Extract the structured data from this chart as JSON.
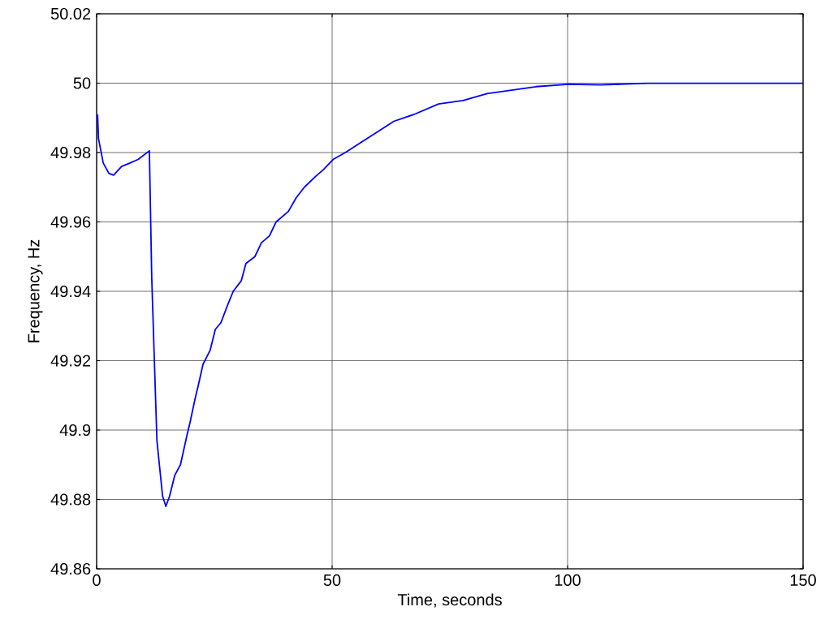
{
  "chart_data": {
    "type": "line",
    "xlabel": "Time, seconds",
    "ylabel": "Frequency, Hz",
    "xlim": [
      0,
      150
    ],
    "ylim": [
      49.86,
      50.02
    ],
    "xticks": [
      0,
      50,
      100,
      150
    ],
    "yticks": [
      49.86,
      49.88,
      49.9,
      49.92,
      49.94,
      49.96,
      49.98,
      50,
      50.02
    ],
    "grid": true,
    "line_style": "solid",
    "series": [
      {
        "color": "#0000ff",
        "x": [
          0.2,
          0.4,
          1.4,
          2.6,
          3.6,
          5.3,
          7.1,
          8.8,
          11.2,
          11.7,
          12.8,
          14.0,
          14.7,
          15.5,
          16.6,
          17.8,
          19.1,
          19.8,
          20.9,
          21.6,
          22.6,
          24.1,
          25.2,
          26.4,
          27.8,
          29.0,
          30.7,
          31.7,
          33.6,
          35.0,
          36.7,
          38.1,
          40.7,
          42.4,
          44.1,
          46.4,
          48.1,
          50.2,
          52.8,
          56.2,
          59.7,
          63.1,
          67.4,
          72.6,
          77.8,
          82.9,
          88.1,
          93.3,
          100.2,
          107,
          117,
          128,
          138,
          150
        ],
        "values": [
          49.991,
          49.984,
          49.977,
          49.974,
          49.9735,
          49.976,
          49.977,
          49.978,
          49.9805,
          49.944,
          49.897,
          49.881,
          49.878,
          49.881,
          49.887,
          49.89,
          49.898,
          49.902,
          49.909,
          49.913,
          49.919,
          49.923,
          49.929,
          49.931,
          49.936,
          49.94,
          49.943,
          49.948,
          49.95,
          49.954,
          49.956,
          49.96,
          49.963,
          49.967,
          49.97,
          49.973,
          49.975,
          49.978,
          49.98,
          49.983,
          49.986,
          49.989,
          49.991,
          49.994,
          49.995,
          49.997,
          49.998,
          49.999,
          49.9997,
          49.9995,
          50.0,
          50.0,
          50.0,
          50.0
        ]
      }
    ]
  }
}
